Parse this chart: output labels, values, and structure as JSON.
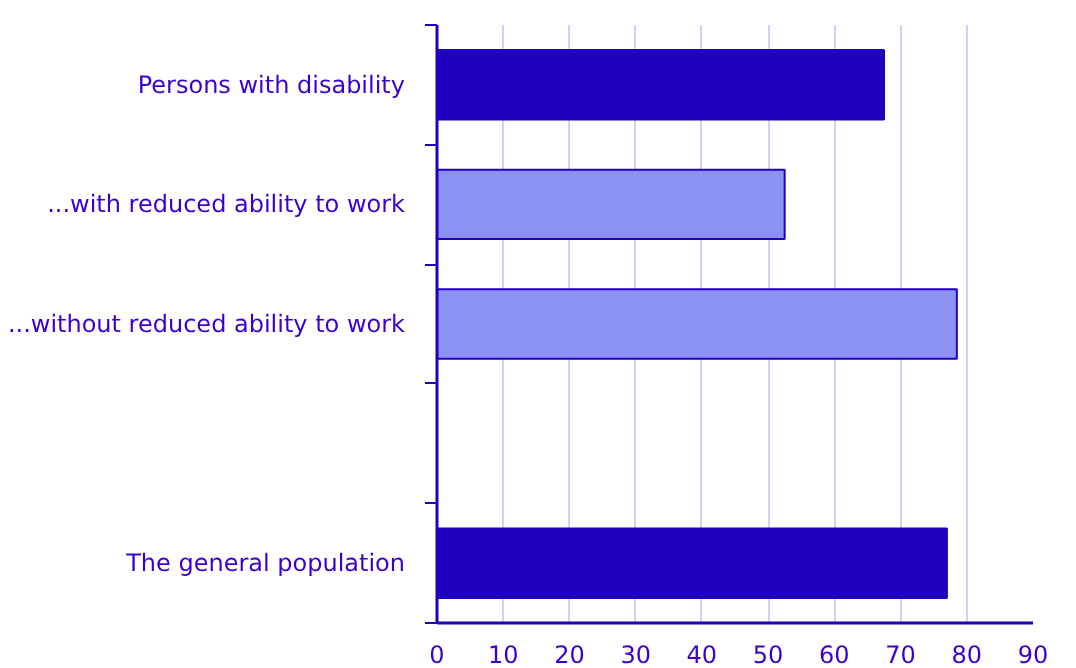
{
  "chart_data": {
    "type": "bar",
    "orientation": "horizontal",
    "categories": [
      "Persons with disability",
      "...with reduced ability to work",
      "...without reduced ability to work",
      null,
      "The general population"
    ],
    "values": [
      67.5,
      52.5,
      78.5,
      null,
      77
    ],
    "colors": [
      "#2000c0",
      "#8c92f4",
      "#8c92f4",
      "#2000c0",
      "#2000c0"
    ],
    "xlim": [
      0,
      90
    ],
    "xticks": [
      0,
      10,
      20,
      30,
      40,
      50,
      60,
      70,
      80,
      90
    ],
    "grid": "x"
  }
}
